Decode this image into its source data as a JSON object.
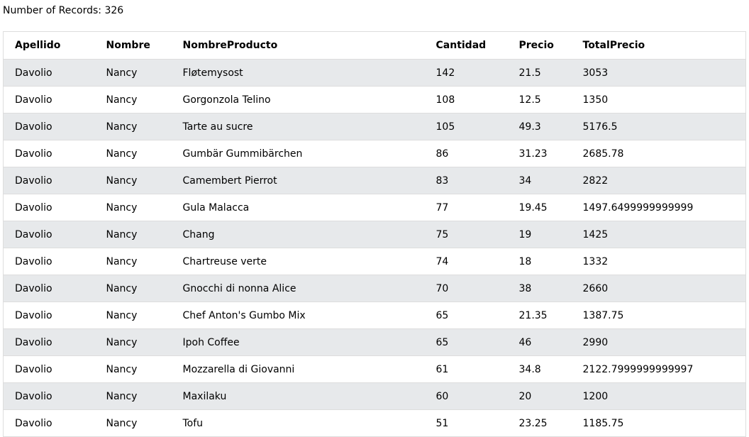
{
  "record_count_label": "Number of Records: 326",
  "columns": [
    "Apellido",
    "Nombre",
    "NombreProducto",
    "Cantidad",
    "Precio",
    "TotalPrecio"
  ],
  "rows": [
    [
      "Davolio",
      "Nancy",
      "Fløtemysost",
      "142",
      "21.5",
      "3053"
    ],
    [
      "Davolio",
      "Nancy",
      "Gorgonzola Telino",
      "108",
      "12.5",
      "1350"
    ],
    [
      "Davolio",
      "Nancy",
      "Tarte au sucre",
      "105",
      "49.3",
      "5176.5"
    ],
    [
      "Davolio",
      "Nancy",
      "Gumbär Gummibärchen",
      "86",
      "31.23",
      "2685.78"
    ],
    [
      "Davolio",
      "Nancy",
      "Camembert Pierrot",
      "83",
      "34",
      "2822"
    ],
    [
      "Davolio",
      "Nancy",
      "Gula Malacca",
      "77",
      "19.45",
      "1497.6499999999999"
    ],
    [
      "Davolio",
      "Nancy",
      "Chang",
      "75",
      "19",
      "1425"
    ],
    [
      "Davolio",
      "Nancy",
      "Chartreuse verte",
      "74",
      "18",
      "1332"
    ],
    [
      "Davolio",
      "Nancy",
      "Gnocchi di nonna Alice",
      "70",
      "38",
      "2660"
    ],
    [
      "Davolio",
      "Nancy",
      "Chef Anton's Gumbo Mix",
      "65",
      "21.35",
      "1387.75"
    ],
    [
      "Davolio",
      "Nancy",
      "Ipoh Coffee",
      "65",
      "46",
      "2990"
    ],
    [
      "Davolio",
      "Nancy",
      "Mozzarella di Giovanni",
      "61",
      "34.8",
      "2122.7999999999997"
    ],
    [
      "Davolio",
      "Nancy",
      "Maxilaku",
      "60",
      "20",
      "1200"
    ],
    [
      "Davolio",
      "Nancy",
      "Tofu",
      "51",
      "23.25",
      "1185.75"
    ]
  ]
}
